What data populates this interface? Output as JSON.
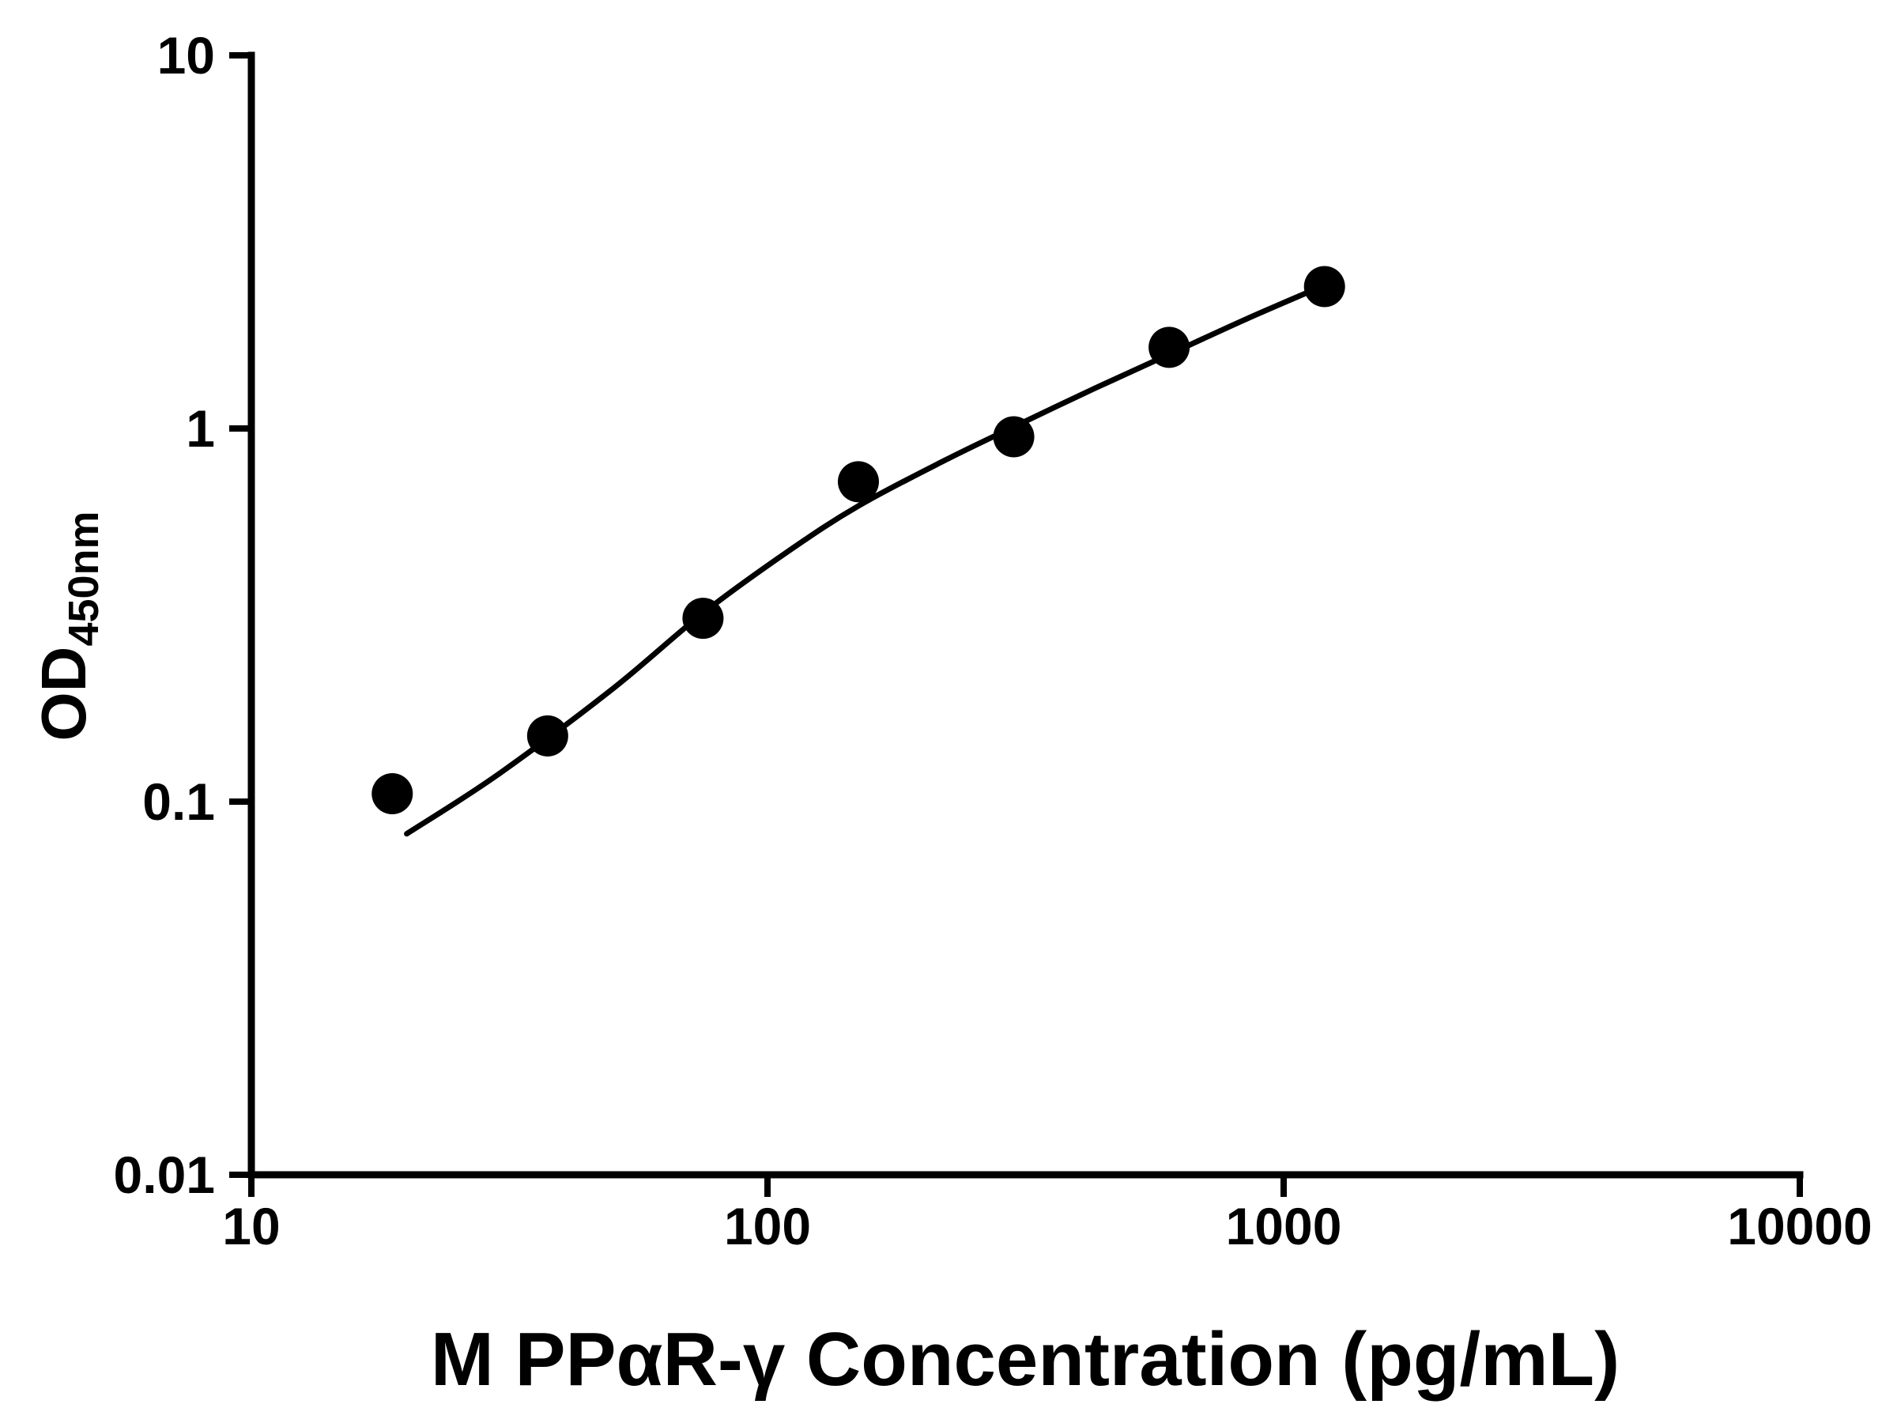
{
  "chart_data": {
    "type": "scatter",
    "title": "",
    "xlabel": "M PPαR-γ Concentration (pg/mL)",
    "ylabel_main": "OD",
    "ylabel_sub": "450nm",
    "x_scale": "log",
    "y_scale": "log",
    "xlim": [
      10,
      10000
    ],
    "ylim": [
      0.01,
      10
    ],
    "x_ticks": [
      10,
      100,
      1000,
      10000
    ],
    "x_tick_labels": [
      "10",
      "100",
      "1000",
      "10000"
    ],
    "y_ticks": [
      0.01,
      0.1,
      1,
      10
    ],
    "y_tick_labels": [
      "0.01",
      "0.1",
      "1",
      "10"
    ],
    "grid": false,
    "legend": "none",
    "marker_color": "#000000",
    "line_color": "#000000",
    "background": "#ffffff",
    "series": [
      {
        "name": "standard-curve-points",
        "points": [
          {
            "x": 18.75,
            "y": 0.105
          },
          {
            "x": 37.5,
            "y": 0.15
          },
          {
            "x": 75,
            "y": 0.31
          },
          {
            "x": 150,
            "y": 0.72
          },
          {
            "x": 300,
            "y": 0.95
          },
          {
            "x": 600,
            "y": 1.65
          },
          {
            "x": 1200,
            "y": 2.4
          }
        ]
      }
    ],
    "fit_curve": [
      {
        "x": 20,
        "y": 0.082
      },
      {
        "x": 30,
        "y": 0.118
      },
      {
        "x": 50,
        "y": 0.2
      },
      {
        "x": 75,
        "y": 0.32
      },
      {
        "x": 110,
        "y": 0.47
      },
      {
        "x": 150,
        "y": 0.62
      },
      {
        "x": 220,
        "y": 0.82
      },
      {
        "x": 300,
        "y": 1.01
      },
      {
        "x": 430,
        "y": 1.28
      },
      {
        "x": 600,
        "y": 1.58
      },
      {
        "x": 850,
        "y": 1.97
      },
      {
        "x": 1200,
        "y": 2.42
      }
    ]
  }
}
